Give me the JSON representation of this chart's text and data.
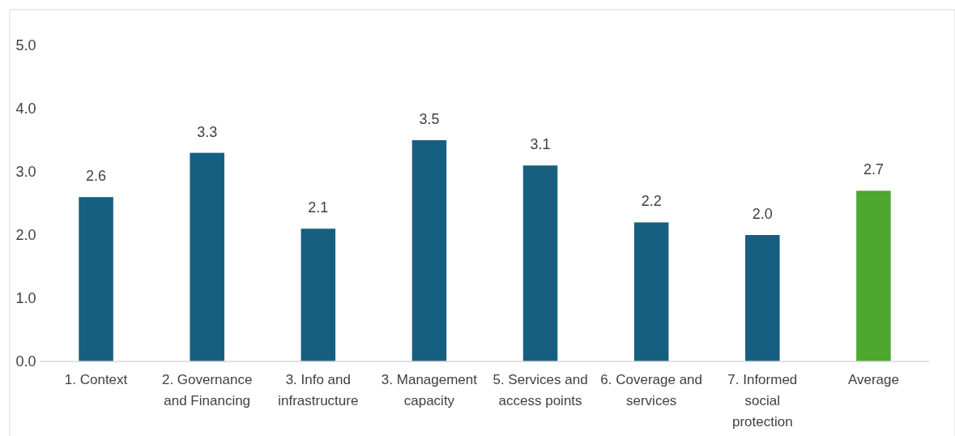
{
  "chart_data": {
    "type": "bar",
    "categories": [
      "1. Context",
      "2. Governance and Financing",
      "3. Info and infrastructure",
      "3. Management capacity",
      "5. Services and access points",
      "6. Coverage and services",
      "7. Informed social protection",
      "Average"
    ],
    "values": [
      2.6,
      3.3,
      2.1,
      3.5,
      3.1,
      2.2,
      2.0,
      2.7
    ],
    "value_labels": [
      "2.6",
      "3.3",
      "2.1",
      "3.5",
      "3.1",
      "2.2",
      "2.0",
      "2.7"
    ],
    "colors": [
      "#175f80",
      "#175f80",
      "#175f80",
      "#175f80",
      "#175f80",
      "#175f80",
      "#175f80",
      "#4ea72e"
    ],
    "ylim": [
      0,
      5
    ],
    "yticks": [
      {
        "value": 0,
        "label": "0.0"
      },
      {
        "value": 1,
        "label": "1.0"
      },
      {
        "value": 2,
        "label": "2.0"
      },
      {
        "value": 3,
        "label": "3.0"
      },
      {
        "value": 4,
        "label": "4.0"
      },
      {
        "value": 5,
        "label": "5.0"
      }
    ],
    "grid": false
  }
}
